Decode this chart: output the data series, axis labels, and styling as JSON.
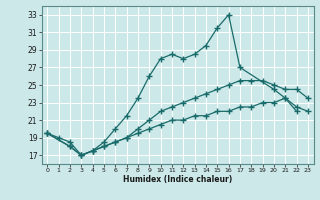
{
  "xlabel": "Humidex (Indice chaleur)",
  "background_color": "#cce8e8",
  "grid_color": "#ffffff",
  "line_color": "#1a6b6b",
  "xlim": [
    -0.5,
    23.5
  ],
  "ylim": [
    16,
    34
  ],
  "x_ticks": [
    0,
    1,
    2,
    3,
    4,
    5,
    6,
    7,
    8,
    9,
    10,
    11,
    12,
    13,
    14,
    15,
    16,
    17,
    18,
    19,
    20,
    21,
    22,
    23
  ],
  "y_ticks": [
    17,
    19,
    21,
    23,
    25,
    27,
    29,
    31,
    33
  ],
  "line1_x": [
    0,
    1,
    2,
    3,
    4,
    5,
    6,
    7,
    8,
    9,
    10,
    11,
    12,
    13,
    14,
    15,
    16,
    17,
    20,
    21,
    22
  ],
  "line1_y": [
    19.5,
    19.0,
    18.5,
    17.0,
    17.5,
    18.5,
    20.0,
    21.5,
    23.5,
    26.0,
    28.0,
    28.5,
    28.0,
    28.5,
    29.5,
    31.5,
    33.0,
    27.0,
    24.5,
    23.5,
    22.0
  ],
  "line2_x": [
    0,
    2,
    3,
    4,
    5,
    6,
    7,
    8,
    9,
    10,
    11,
    12,
    13,
    14,
    15,
    16,
    17,
    18,
    19,
    20,
    21,
    22,
    23
  ],
  "line2_y": [
    19.5,
    18.0,
    17.0,
    17.5,
    18.0,
    18.5,
    19.0,
    20.0,
    21.0,
    22.0,
    22.5,
    23.0,
    23.5,
    24.0,
    24.5,
    25.0,
    25.5,
    25.5,
    25.5,
    25.0,
    24.5,
    24.5,
    23.5
  ],
  "line3_x": [
    0,
    2,
    3,
    4,
    5,
    6,
    7,
    8,
    9,
    10,
    11,
    12,
    13,
    14,
    15,
    16,
    17,
    18,
    19,
    20,
    21,
    22,
    23
  ],
  "line3_y": [
    19.5,
    18.0,
    17.0,
    17.5,
    18.0,
    18.5,
    19.0,
    19.5,
    20.0,
    20.5,
    21.0,
    21.0,
    21.5,
    21.5,
    22.0,
    22.0,
    22.5,
    22.5,
    23.0,
    23.0,
    23.5,
    22.5,
    22.0
  ]
}
